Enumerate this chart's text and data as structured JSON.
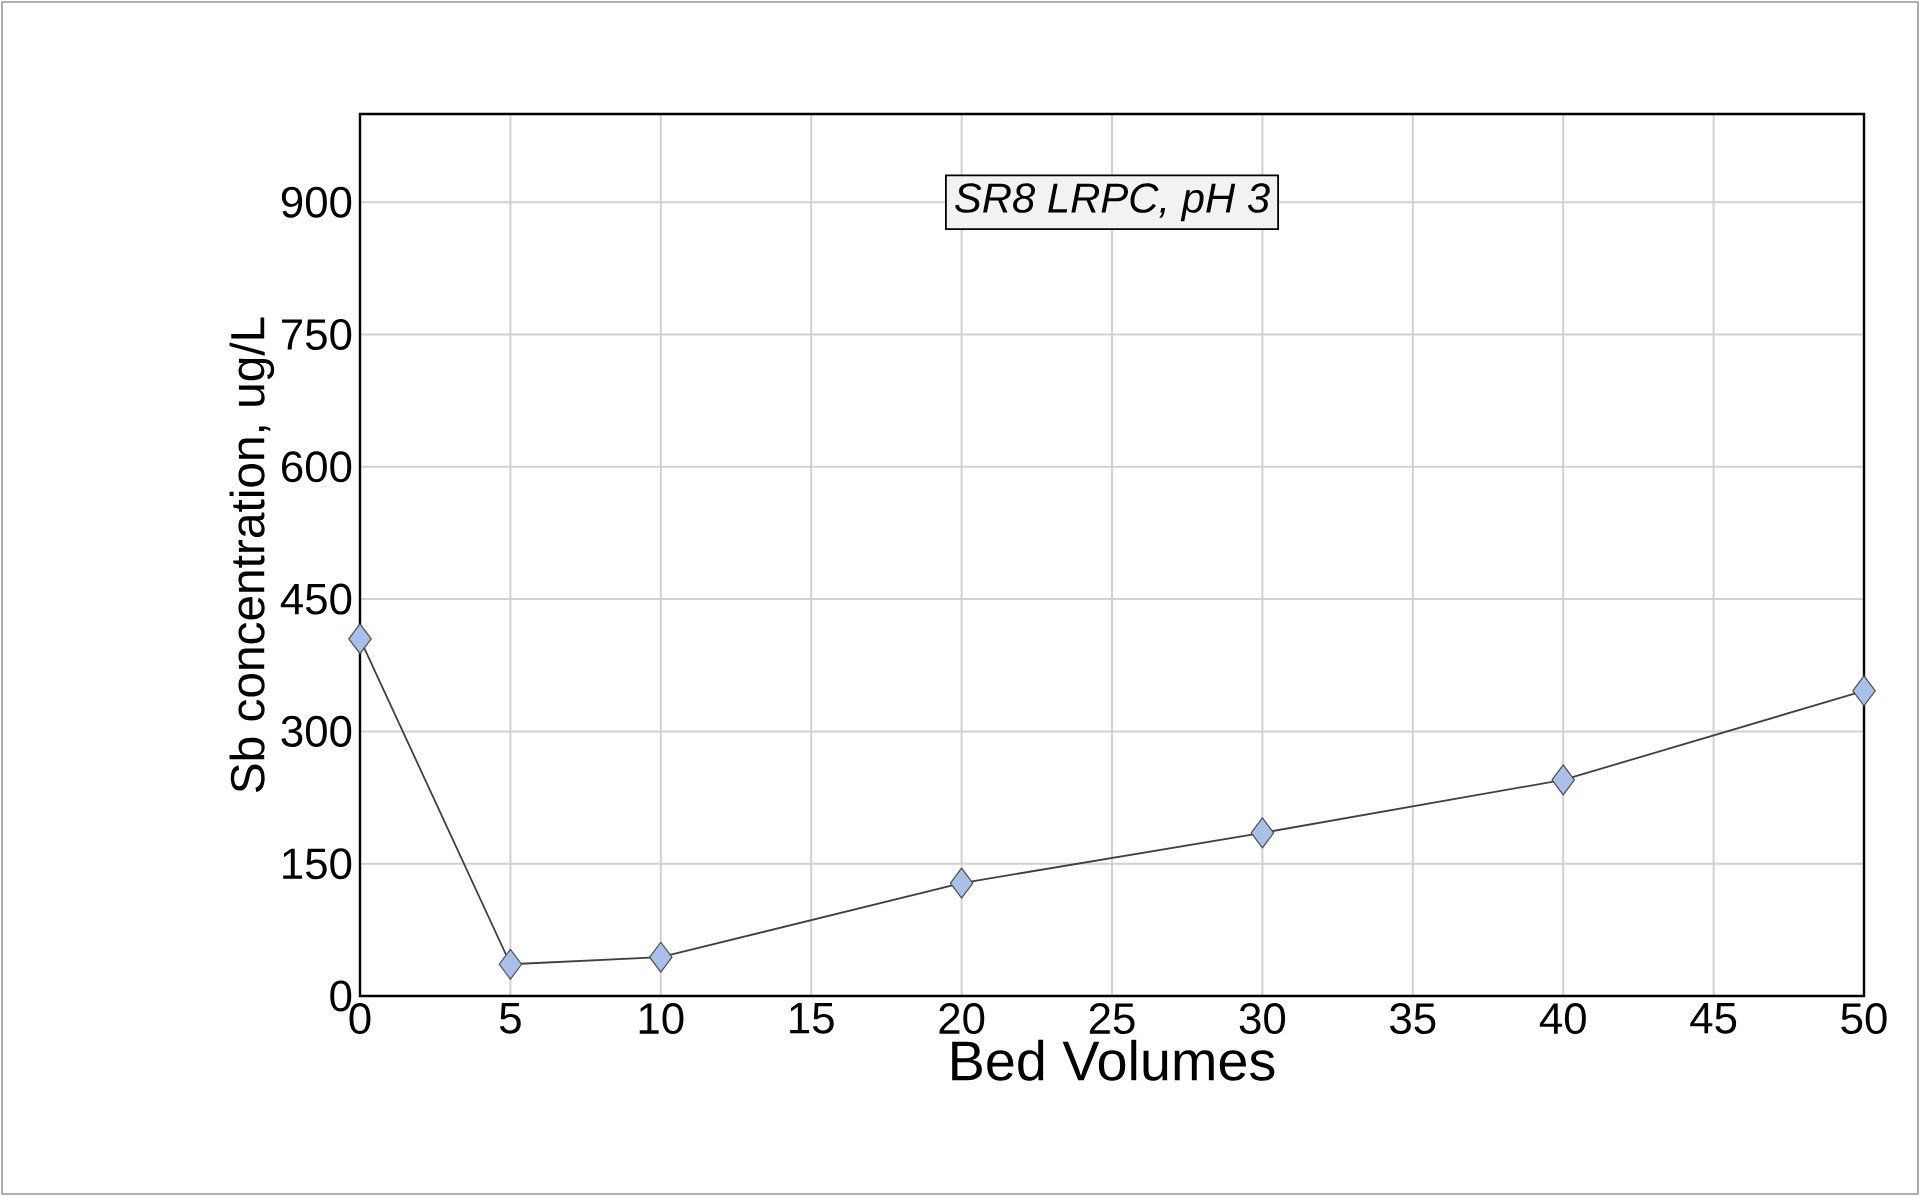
{
  "chart_data": {
    "type": "line",
    "xlabel": "Bed Volumes",
    "ylabel": "Sb concentration, ug/L",
    "annotations": [
      "SR8 LRPC, pH 3"
    ],
    "x": [
      0,
      5,
      10,
      20,
      30,
      40,
      50
    ],
    "series": [
      {
        "color": "#a9c1e8",
        "values": [
          405,
          36,
          44,
          128,
          185,
          245,
          346
        ]
      }
    ],
    "xlim": [
      0,
      50
    ],
    "xticks": [
      0,
      5,
      10,
      15,
      20,
      25,
      30,
      35,
      40,
      45,
      50
    ],
    "ylim": [
      0,
      1000
    ],
    "yticks": [
      0,
      150,
      300,
      450,
      600,
      750,
      900
    ],
    "grid": true,
    "marker": "diamond",
    "line_style": "solid"
  }
}
